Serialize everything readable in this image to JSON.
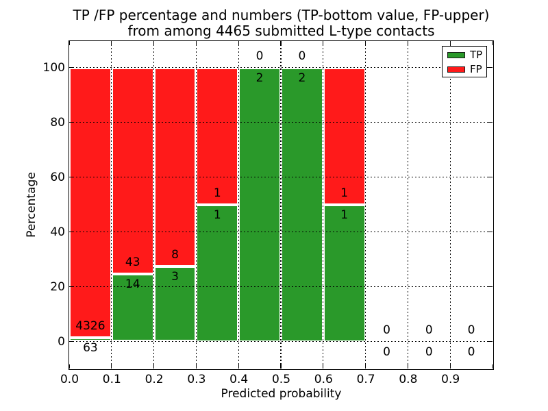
{
  "title": {
    "line1": "TP /FP percentage and numbers (TP-bottom value, FP-upper)",
    "line2": "from among 4465 submitted L-type contacts"
  },
  "x_axis": {
    "label": "Predicted probability",
    "ticks": [
      "0.0",
      "0.1",
      "0.2",
      "0.3",
      "0.4",
      "0.5",
      "0.6",
      "0.7",
      "0.8",
      "0.9"
    ]
  },
  "y_axis": {
    "label": "Percentage",
    "ticks": [
      "0",
      "20",
      "40",
      "60",
      "80",
      "100"
    ]
  },
  "legend": {
    "items": [
      {
        "label": "TP",
        "color": "#2A992A"
      },
      {
        "label": "FP",
        "color": "#FF1A1A"
      }
    ]
  },
  "colors": {
    "tp_green": "#2A992A",
    "fp_red": "#FF1A1A",
    "bar_edge": "#FFFFFF",
    "grid": "#000000",
    "background": "#FFFFFF"
  },
  "chart_data": {
    "type": "bar",
    "stacked": true,
    "normalized_to_percent": true,
    "title": "TP /FP percentage and numbers (TP-bottom value, FP-upper) from among 4465 submitted L-type contacts",
    "xlabel": "Predicted probability",
    "ylabel": "Percentage",
    "xlim": [
      0.0,
      1.0
    ],
    "ylim": [
      -10,
      110
    ],
    "grid": true,
    "legend_position": "upper right",
    "total_submitted": 4465,
    "bin_width": 0.1,
    "categories": [
      "0.0-0.1",
      "0.1-0.2",
      "0.2-0.3",
      "0.3-0.4",
      "0.4-0.5",
      "0.5-0.6",
      "0.6-0.7",
      "0.7-0.8",
      "0.8-0.9",
      "0.9-1.0"
    ],
    "series": [
      {
        "name": "TP",
        "color": "#2A992A",
        "counts": [
          63,
          14,
          3,
          1,
          2,
          2,
          1,
          0,
          0,
          0
        ]
      },
      {
        "name": "FP",
        "color": "#FF1A1A",
        "counts": [
          4326,
          43,
          8,
          1,
          0,
          0,
          1,
          0,
          0,
          0
        ]
      }
    ],
    "tp_percent_by_bin": [
      1.44,
      24.56,
      27.27,
      50.0,
      100.0,
      100.0,
      50.0,
      null,
      null,
      null
    ]
  }
}
